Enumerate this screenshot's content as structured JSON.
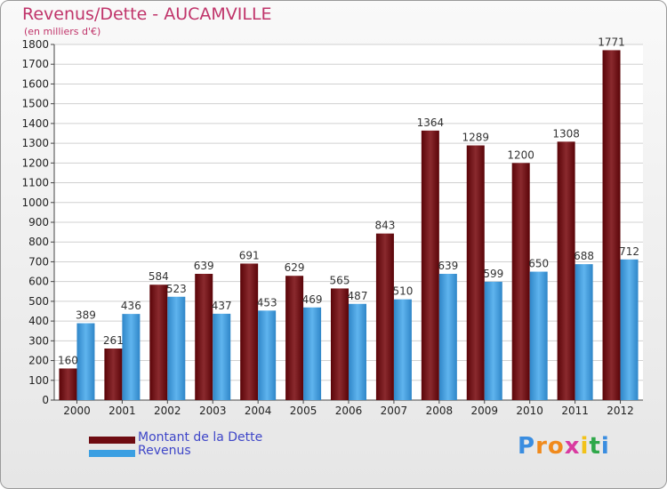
{
  "title": "Revenus/Dette - AUCAMVILLE",
  "subtitle": "(en milliers d'€)",
  "legend": {
    "debt_label": "Montant de la Dette",
    "revenue_label": "Revenus"
  },
  "logo_text": "Proxiti",
  "colors": {
    "debt": "#6e0c12",
    "revenue": "#3b9fe2",
    "title": "#c0346a",
    "legend_text": "#3e46c8"
  },
  "chart_data": {
    "type": "bar",
    "title": "Revenus/Dette - AUCAMVILLE",
    "ylabel": "(en milliers d'€)",
    "xlabel": "",
    "ylim": [
      0,
      1800
    ],
    "ytick_step": 100,
    "grid": true,
    "categories": [
      "2000",
      "2001",
      "2002",
      "2003",
      "2004",
      "2005",
      "2006",
      "2007",
      "2008",
      "2009",
      "2010",
      "2011",
      "2012"
    ],
    "series": [
      {
        "name": "Montant de la Dette",
        "values": [
          160,
          261,
          584,
          639,
          691,
          629,
          565,
          843,
          1364,
          1289,
          1200,
          1308,
          1771
        ]
      },
      {
        "name": "Revenus",
        "values": [
          389,
          436,
          523,
          437,
          453,
          469,
          487,
          510,
          639,
          599,
          650,
          688,
          712
        ]
      }
    ]
  }
}
